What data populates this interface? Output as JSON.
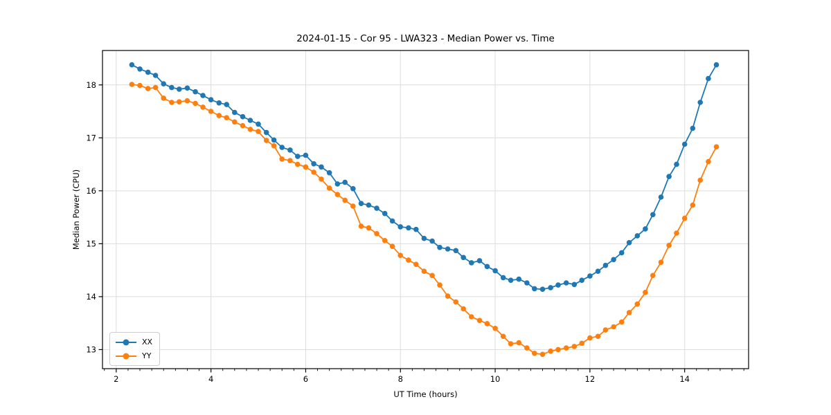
{
  "figure": {
    "background_color": "#ffffff",
    "spine_color": "#000000",
    "grid_color": "#dcdcdc",
    "tick_color": "#000000"
  },
  "chart_data": {
    "type": "line",
    "title": "2024-01-15 - Cor 95 - LWA323 - Median Power vs. Time",
    "xlabel": "UT Time (hours)",
    "ylabel": "Median Power (CPU)",
    "xlim": [
      1.71,
      15.35
    ],
    "ylim": [
      12.64,
      18.65
    ],
    "x_ticks": [
      2,
      4,
      6,
      8,
      10,
      12,
      14
    ],
    "x_minor_tick_step": 0.25,
    "y_ticks": [
      13,
      14,
      15,
      16,
      17,
      18
    ],
    "grid": true,
    "legend_position": "lower-left",
    "marker": "circle",
    "x": [
      2.33,
      2.5,
      2.67,
      2.83,
      3,
      3.17,
      3.33,
      3.5,
      3.67,
      3.83,
      4,
      4.17,
      4.33,
      4.5,
      4.67,
      4.83,
      5,
      5.17,
      5.33,
      5.5,
      5.67,
      5.83,
      6,
      6.17,
      6.33,
      6.5,
      6.67,
      6.83,
      7,
      7.17,
      7.33,
      7.5,
      7.67,
      7.83,
      8,
      8.17,
      8.33,
      8.5,
      8.67,
      8.83,
      9,
      9.17,
      9.33,
      9.5,
      9.67,
      9.83,
      10,
      10.17,
      10.33,
      10.5,
      10.67,
      10.83,
      11,
      11.17,
      11.33,
      11.5,
      11.67,
      11.83,
      12,
      12.17,
      12.33,
      12.5,
      12.67,
      12.83,
      13,
      13.17,
      13.33,
      13.5,
      13.67,
      13.83,
      14,
      14.17,
      14.33,
      14.5,
      14.67
    ],
    "series": [
      {
        "name": "XX",
        "color": "#1f77b4",
        "values": [
          18.38,
          18.3,
          18.24,
          18.18,
          18.02,
          17.95,
          17.92,
          17.94,
          17.87,
          17.8,
          17.72,
          17.66,
          17.63,
          17.48,
          17.4,
          17.33,
          17.26,
          17.1,
          16.96,
          16.82,
          16.77,
          16.65,
          16.67,
          16.51,
          16.45,
          16.34,
          16.13,
          16.16,
          16.04,
          15.76,
          15.73,
          15.67,
          15.57,
          15.43,
          15.32,
          15.3,
          15.27,
          15.1,
          15.05,
          14.93,
          14.9,
          14.87,
          14.74,
          14.64,
          14.68,
          14.57,
          14.49,
          14.36,
          14.31,
          14.33,
          14.26,
          14.15,
          14.14,
          14.17,
          14.22,
          14.26,
          14.23,
          14.31,
          14.39,
          14.48,
          14.59,
          14.7,
          14.83,
          15.02,
          15.15,
          15.28,
          15.55,
          15.88,
          16.27,
          16.5,
          16.88,
          17.18,
          17.67,
          18.12,
          18.38
        ]
      },
      {
        "name": "YY",
        "color": "#ff7f0e",
        "values": [
          18.01,
          17.99,
          17.93,
          17.95,
          17.75,
          17.67,
          17.68,
          17.7,
          17.65,
          17.58,
          17.5,
          17.42,
          17.38,
          17.3,
          17.23,
          17.16,
          17.12,
          16.95,
          16.85,
          16.6,
          16.57,
          16.5,
          16.45,
          16.35,
          16.22,
          16.05,
          15.93,
          15.82,
          15.71,
          15.33,
          15.3,
          15.19,
          15.06,
          14.95,
          14.78,
          14.69,
          14.61,
          14.48,
          14.4,
          14.22,
          14.01,
          13.9,
          13.77,
          13.62,
          13.55,
          13.49,
          13.4,
          13.25,
          13.11,
          13.13,
          13.03,
          12.93,
          12.91,
          12.97,
          13.0,
          13.03,
          13.06,
          13.12,
          13.22,
          13.25,
          13.37,
          13.43,
          13.52,
          13.7,
          13.86,
          14.08,
          14.4,
          14.65,
          14.97,
          15.2,
          15.48,
          15.73,
          16.2,
          16.55,
          16.83
        ]
      }
    ]
  }
}
